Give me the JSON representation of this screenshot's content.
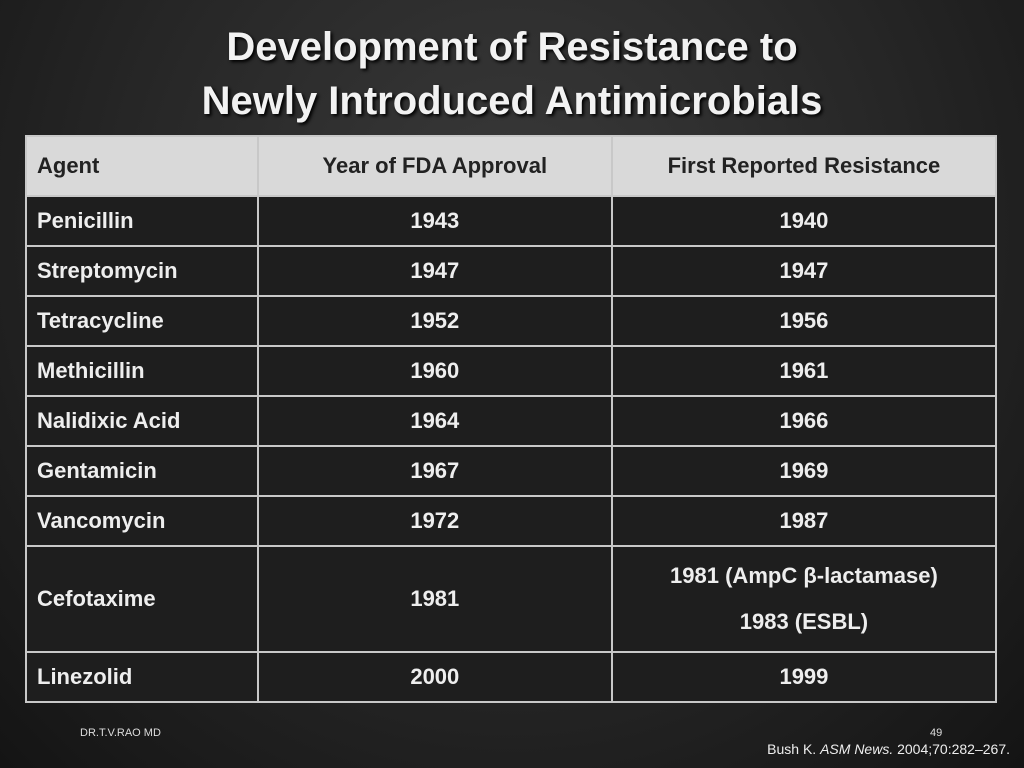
{
  "title": {
    "line1": "Development of Resistance to",
    "line2": "Newly Introduced Antimicrobials"
  },
  "table": {
    "header": [
      "Agent",
      "Year of FDA Approval",
      "First Reported Resistance"
    ],
    "rows": [
      [
        "Penicillin",
        "1943",
        "1940"
      ],
      [
        "Streptomycin",
        "1947",
        "1947"
      ],
      [
        "Tetracycline",
        "1952",
        "1956"
      ],
      [
        "Methicillin",
        "1960",
        "1961"
      ],
      [
        "Nalidixic Acid",
        "1964",
        "1966"
      ],
      [
        "Gentamicin",
        "1967",
        "1969"
      ],
      [
        "Vancomycin",
        "1972",
        "1987"
      ],
      [
        "Cefotaxime",
        "1981",
        [
          "1981 (AmpC β-lactamase)",
          "1983 (ESBL)"
        ]
      ],
      [
        "Linezolid",
        "2000",
        "1999"
      ]
    ]
  },
  "footer": {
    "author": "DR.T.V.RAO MD",
    "page": "49",
    "citation": {
      "author": "Bush K.",
      "journal": "ASM News.",
      "details": "2004;70:282–267."
    }
  }
}
